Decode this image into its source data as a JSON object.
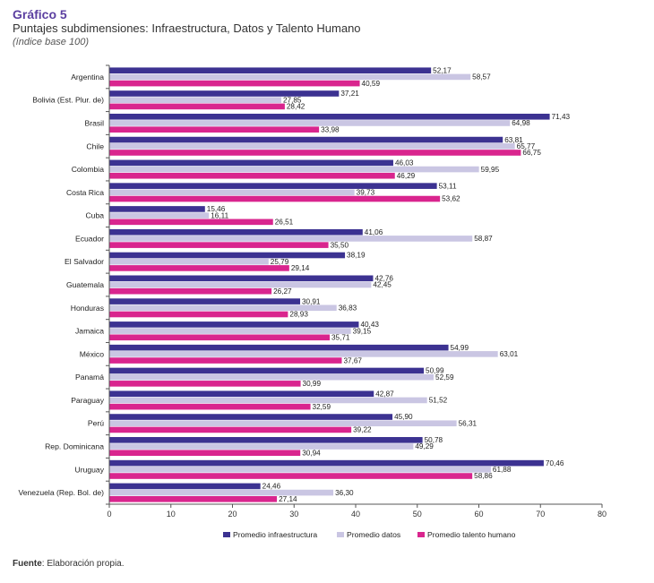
{
  "header": {
    "figure_number": "Gráfico 5",
    "title": "Puntajes subdimensiones: Infraestructura, Datos y Talento Humano",
    "subtitle": "(índice base 100)"
  },
  "source": {
    "label": "Fuente",
    "text": ": Elaboración propia."
  },
  "chart_data": {
    "type": "bar",
    "orientation": "horizontal",
    "title": "Puntajes subdimensiones: Infraestructura, Datos y Talento Humano",
    "xlabel": "",
    "ylabel": "",
    "xlim": [
      0,
      80
    ],
    "xticks": [
      0,
      10,
      20,
      30,
      40,
      50,
      60,
      70,
      80
    ],
    "grid": false,
    "legend_position": "bottom",
    "categories": [
      "Argentina",
      "Bolivia (Est. Plur. de)",
      "Brasil",
      "Chile",
      "Colombia",
      "Costa Rica",
      "Cuba",
      "Ecuador",
      "El Salvador",
      "Guatemala",
      "Honduras",
      "Jamaica",
      "México",
      "Panamá",
      "Paraguay",
      "Perú",
      "Rep. Dominicana",
      "Uruguay",
      "Venezuela (Rep. Bol. de)"
    ],
    "series": [
      {
        "name": "Promedio infraestructura",
        "color": "#3c3291",
        "values": [
          52.17,
          37.21,
          71.43,
          63.81,
          46.03,
          53.11,
          15.46,
          41.06,
          38.19,
          42.76,
          30.91,
          40.43,
          54.99,
          50.99,
          42.87,
          45.9,
          50.78,
          70.46,
          24.46
        ],
        "labels": [
          "52,17",
          "37,21",
          "71,43",
          "63,81",
          "46,03",
          "53,11",
          "15,46",
          "41,06",
          "38,19",
          "42,76",
          "30,91",
          "40,43",
          "54,99",
          "50,99",
          "42,87",
          "45,90",
          "50,78",
          "70,46",
          "24,46"
        ]
      },
      {
        "name": "Promedio datos",
        "color": "#cac6e3",
        "values": [
          58.57,
          27.85,
          64.98,
          65.77,
          59.95,
          39.73,
          16.11,
          58.87,
          25.79,
          42.45,
          36.83,
          39.15,
          63.01,
          52.59,
          51.52,
          56.31,
          49.29,
          61.88,
          36.3
        ],
        "labels": [
          "58,57",
          "27,85",
          "64,98",
          "65,77",
          "59,95",
          "39,73",
          "16,11",
          "58,87",
          "25,79",
          "42,45",
          "36,83",
          "39,15",
          "63,01",
          "52,59",
          "51,52",
          "56,31",
          "49,29",
          "61,88",
          "36,30"
        ]
      },
      {
        "name": "Promedio talento humano",
        "color": "#d9258e",
        "values": [
          40.59,
          28.42,
          33.98,
          66.75,
          46.29,
          53.62,
          26.51,
          35.5,
          29.14,
          26.27,
          28.93,
          35.71,
          37.67,
          30.99,
          32.59,
          39.22,
          30.94,
          58.86,
          27.14
        ],
        "labels": [
          "40,59",
          "28,42",
          "33,98",
          "66,75",
          "46,29",
          "53,62",
          "26,51",
          "35,50",
          "29,14",
          "26,27",
          "28,93",
          "35,71",
          "37,67",
          "30,99",
          "32,59",
          "39,22",
          "30,94",
          "58,86",
          "27,14"
        ]
      }
    ]
  }
}
